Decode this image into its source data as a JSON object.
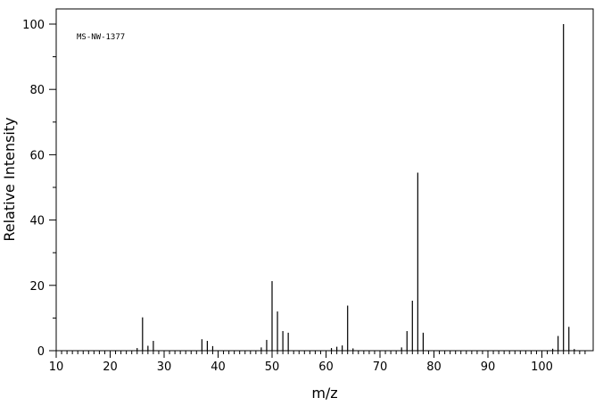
{
  "chart_data": {
    "type": "bar",
    "title": "",
    "annotation": "MS-NW-1377",
    "xlabel": "m/z",
    "ylabel": "Relative Intensity",
    "xlim": [
      10,
      108
    ],
    "ylim": [
      0,
      105
    ],
    "x_major_ticks": [
      10,
      20,
      30,
      40,
      50,
      60,
      70,
      80,
      90,
      100
    ],
    "x_tick_labels": [
      "10",
      "20",
      "30",
      "40",
      "50",
      "60",
      "70",
      "80",
      "90",
      "100"
    ],
    "y_major_ticks": [
      0,
      20,
      40,
      60,
      80,
      100
    ],
    "y_tick_labels": [
      "0",
      "20",
      "40",
      "60",
      "80",
      "100"
    ],
    "grid": false,
    "legend": "none",
    "series": [
      {
        "peaks": [
          {
            "mz": 25,
            "intensity": 0.8
          },
          {
            "mz": 26,
            "intensity": 10.2
          },
          {
            "mz": 27,
            "intensity": 1.5
          },
          {
            "mz": 28,
            "intensity": 3.0
          },
          {
            "mz": 37,
            "intensity": 3.5
          },
          {
            "mz": 38,
            "intensity": 3.0
          },
          {
            "mz": 39,
            "intensity": 1.4
          },
          {
            "mz": 48,
            "intensity": 1.0
          },
          {
            "mz": 49,
            "intensity": 3.3
          },
          {
            "mz": 50,
            "intensity": 21.3
          },
          {
            "mz": 51,
            "intensity": 12.0
          },
          {
            "mz": 52,
            "intensity": 6.0
          },
          {
            "mz": 53,
            "intensity": 5.5
          },
          {
            "mz": 61,
            "intensity": 0.8
          },
          {
            "mz": 62,
            "intensity": 1.2
          },
          {
            "mz": 63,
            "intensity": 1.6
          },
          {
            "mz": 64,
            "intensity": 13.8
          },
          {
            "mz": 65,
            "intensity": 0.7
          },
          {
            "mz": 74,
            "intensity": 1.0
          },
          {
            "mz": 75,
            "intensity": 6.0
          },
          {
            "mz": 76,
            "intensity": 15.3
          },
          {
            "mz": 77,
            "intensity": 54.5
          },
          {
            "mz": 78,
            "intensity": 5.5
          },
          {
            "mz": 102,
            "intensity": 0.6
          },
          {
            "mz": 103,
            "intensity": 4.5
          },
          {
            "mz": 104,
            "intensity": 100
          },
          {
            "mz": 105,
            "intensity": 7.3
          },
          {
            "mz": 106,
            "intensity": 0.5
          }
        ]
      }
    ]
  }
}
